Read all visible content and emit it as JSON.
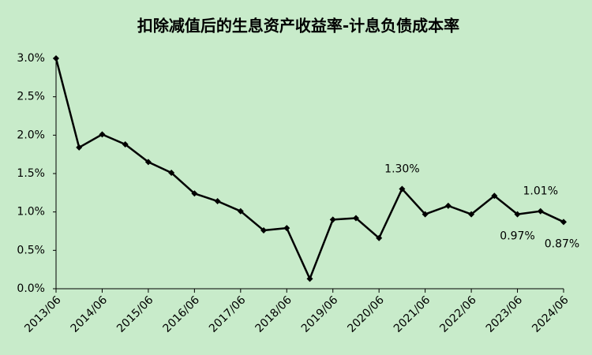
{
  "chart_data": {
    "type": "line",
    "title": "扣除减值后的生息资产收益率-计息负债成本率",
    "categories": [
      "2013/06",
      null,
      "2014/06",
      null,
      "2015/06",
      null,
      "2016/06",
      null,
      "2017/06",
      null,
      "2018/06",
      null,
      "2019/06",
      null,
      "2020/06",
      null,
      "2021/06",
      null,
      "2022/06",
      null,
      "2023/06",
      null,
      "2024/06"
    ],
    "values": [
      3.0,
      1.84,
      2.01,
      1.88,
      1.65,
      1.51,
      1.24,
      1.14,
      1.01,
      0.76,
      0.79,
      0.13,
      0.9,
      0.92,
      0.66,
      1.3,
      0.97,
      1.08,
      0.97,
      1.21,
      0.97,
      1.01,
      0.87
    ],
    "value_labels": [
      null,
      null,
      null,
      null,
      null,
      null,
      null,
      null,
      null,
      null,
      null,
      null,
      null,
      null,
      null,
      "1.30%",
      null,
      null,
      null,
      null,
      "0.97%",
      "1.01%",
      "0.87%"
    ],
    "color": "#000000",
    "ylim": [
      0,
      3.0
    ],
    "yticks": [
      {
        "value": 0,
        "label": "0.0%"
      },
      {
        "value": 0.5,
        "label": "0.5%"
      },
      {
        "value": 1.0,
        "label": "1.0%"
      },
      {
        "value": 1.5,
        "label": "1.5%"
      },
      {
        "value": 2.0,
        "label": "2.0%"
      },
      {
        "value": 2.5,
        "label": "2.5%"
      },
      {
        "value": 3.0,
        "label": "3.0%"
      }
    ]
  }
}
